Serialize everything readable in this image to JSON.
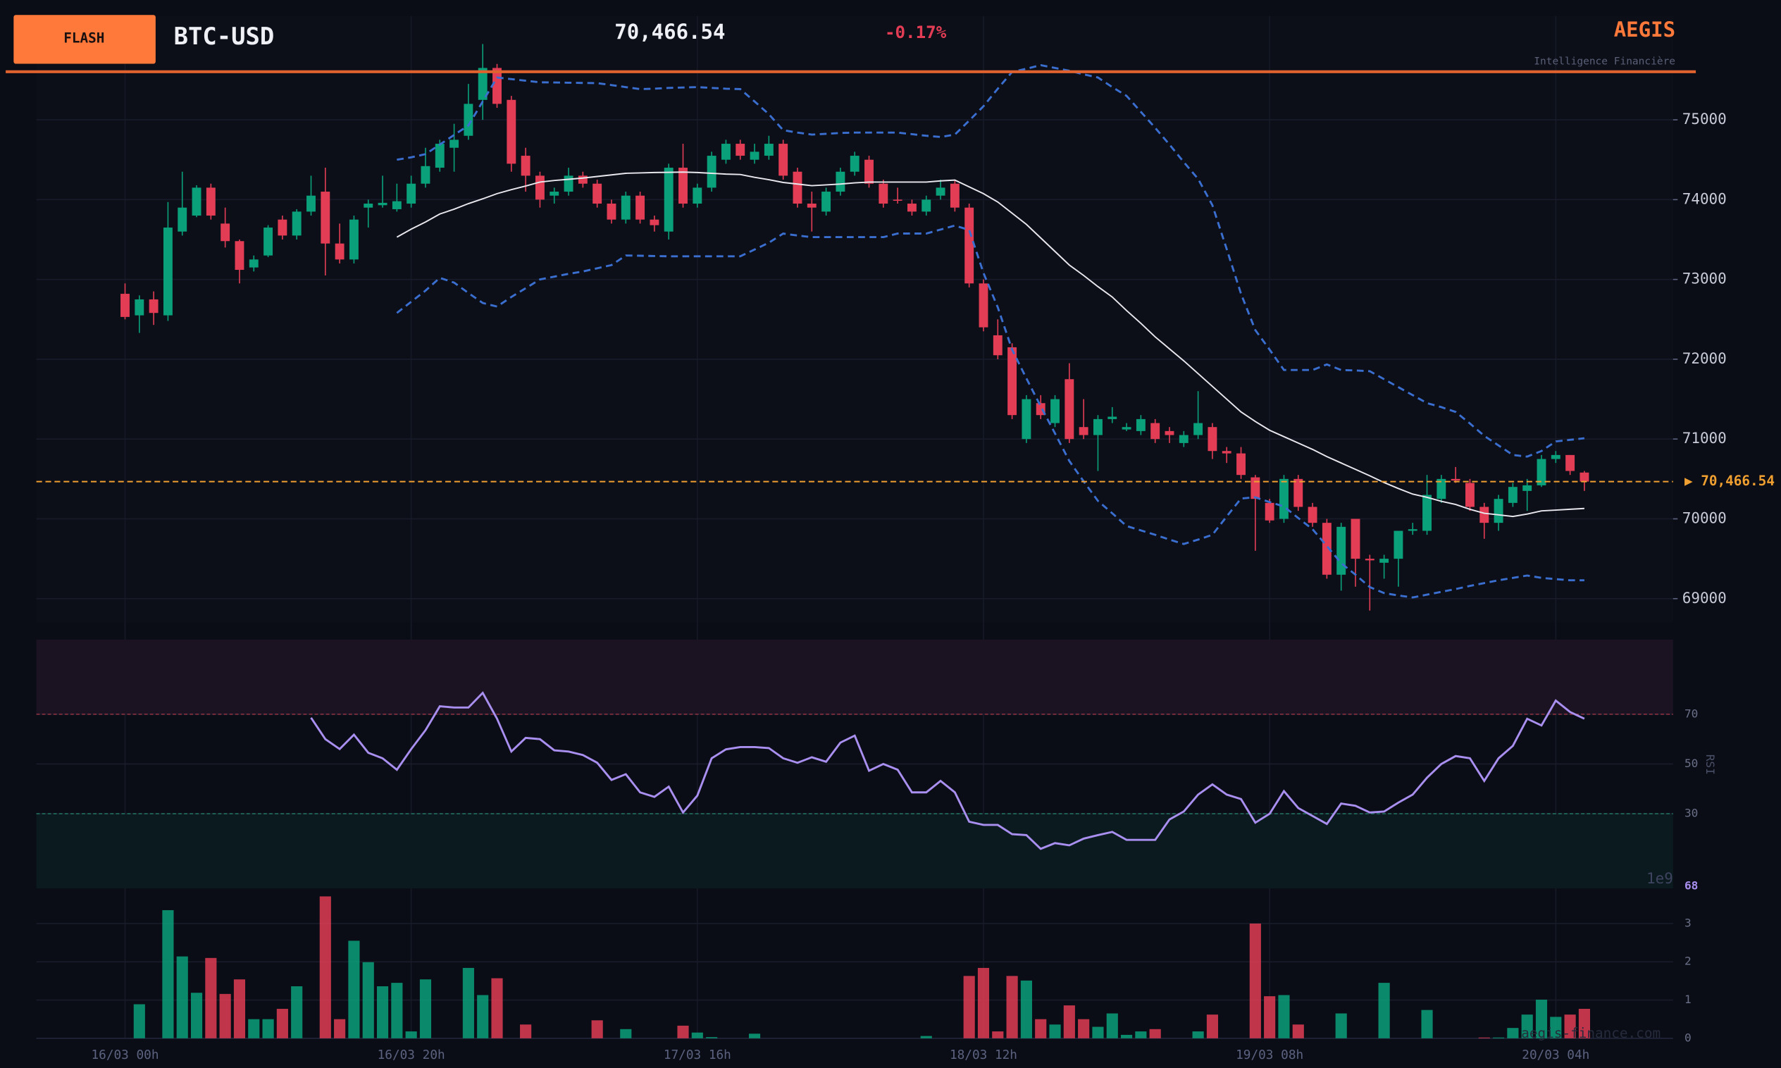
{
  "header": {
    "badge": "FLASH",
    "symbol": "BTC-USD",
    "change": {
      "value": -0.17,
      "label": "-0.17%"
    },
    "brand": "AEGIS",
    "tagline": "Intelligence Financière",
    "watermark": "aegis-finance.com"
  },
  "chart_data": {
    "type": "candlestick",
    "x": [
      0,
      1,
      2,
      3,
      4,
      5,
      6,
      7,
      8,
      9,
      10,
      11,
      12,
      13,
      14,
      15,
      16,
      17,
      18,
      19,
      20,
      21,
      22,
      23,
      24,
      25,
      26,
      27,
      28,
      29,
      30,
      31,
      32,
      33,
      34,
      35,
      36,
      37,
      38,
      39,
      40,
      41,
      42,
      43,
      44,
      45,
      46,
      47,
      48,
      49,
      50,
      51,
      52,
      53,
      54,
      55,
      56,
      57,
      58,
      59,
      60,
      61,
      62,
      63,
      64,
      65,
      66,
      67,
      68,
      69,
      70,
      71,
      72,
      73,
      74,
      75,
      76,
      77,
      78,
      79,
      80,
      81,
      82,
      83,
      84,
      85,
      86,
      87,
      88,
      89,
      90,
      91,
      92,
      93,
      94,
      95,
      96,
      97,
      98,
      99,
      100,
      101,
      102
    ],
    "xlim": [
      -6.2,
      108.2
    ],
    "xticks": [
      {
        "value": 0,
        "label": "16/03 00h"
      },
      {
        "value": 20,
        "label": "16/03 20h"
      },
      {
        "value": 40,
        "label": "17/03 16h"
      },
      {
        "value": 60,
        "label": "18/03 12h"
      },
      {
        "value": 80,
        "label": "19/03 08h"
      },
      {
        "value": 100,
        "label": "20/03 04h"
      }
    ],
    "ylim": [
      68700,
      76300
    ],
    "yticks": [
      69000,
      70000,
      71000,
      72000,
      73000,
      74000,
      75000
    ],
    "grid": true,
    "up_color": "#0aa17a",
    "down_color": "#e23d55",
    "open": [
      72820,
      72550,
      72750,
      72550,
      73600,
      73800,
      74150,
      73700,
      73480,
      73150,
      73300,
      73750,
      73550,
      73850,
      74100,
      73450,
      73250,
      73900,
      73930,
      73880,
      73950,
      74200,
      74400,
      74650,
      74800,
      75250,
      75650,
      75250,
      74550,
      74300,
      74050,
      74100,
      74300,
      74200,
      73950,
      73750,
      74050,
      73750,
      73600,
      74400,
      73950,
      74150,
      74500,
      74700,
      74500,
      74550,
      74700,
      74350,
      73950,
      73850,
      74100,
      74350,
      74500,
      74200,
      74000,
      73950,
      73850,
      74050,
      74200,
      73900,
      72950,
      72300,
      72150,
      71000,
      71450,
      71200,
      71750,
      71150,
      71050,
      71250,
      71120,
      71100,
      71200,
      71100,
      70950,
      71050,
      71150,
      70850,
      70820,
      70520,
      70200,
      70000,
      70500,
      70150,
      69950,
      69300,
      70000,
      69500,
      69450,
      69500,
      69850,
      69850,
      70250,
      70500,
      70450,
      70150,
      69950,
      70200,
      70350,
      70420,
      70750,
      70800,
      70580
    ],
    "high": [
      72950,
      72800,
      72850,
      73970,
      74350,
      74180,
      74200,
      73900,
      73500,
      73300,
      73680,
      73800,
      73880,
      74300,
      74400,
      73700,
      73800,
      74000,
      74300,
      74200,
      74300,
      74650,
      74750,
      74950,
      75450,
      75950,
      75700,
      75300,
      74650,
      74350,
      74150,
      74400,
      74350,
      74250,
      74000,
      74100,
      74100,
      73800,
      74450,
      74700,
      74200,
      74600,
      74750,
      74750,
      74700,
      74800,
      74750,
      74400,
      74100,
      74150,
      74400,
      74600,
      74550,
      74250,
      74150,
      74000,
      74050,
      74250,
      74250,
      73950,
      73000,
      72500,
      72200,
      71550,
      71550,
      71550,
      71950,
      71500,
      71300,
      71400,
      71200,
      71300,
      71250,
      71150,
      71100,
      71600,
      71200,
      70900,
      70900,
      70550,
      70250,
      70550,
      70550,
      70200,
      70000,
      69950,
      70000,
      69550,
      69550,
      69850,
      69950,
      70550,
      70550,
      70650,
      70500,
      70200,
      70300,
      70450,
      70500,
      70800,
      70850,
      70800,
      70600
    ],
    "low": [
      72500,
      72330,
      72430,
      72480,
      73550,
      73780,
      73750,
      73400,
      72950,
      73100,
      73280,
      73500,
      73500,
      73800,
      73050,
      73200,
      73200,
      73650,
      73900,
      73850,
      73900,
      74150,
      74350,
      74350,
      74750,
      75000,
      75150,
      74350,
      74100,
      73900,
      73950,
      74050,
      74150,
      73900,
      73700,
      73700,
      73700,
      73600,
      73500,
      73900,
      73900,
      74100,
      74450,
      74500,
      74450,
      74500,
      74250,
      73900,
      73600,
      73800,
      74050,
      74300,
      74150,
      73900,
      73950,
      73800,
      73800,
      74000,
      73850,
      72900,
      72350,
      72000,
      71250,
      70950,
      71250,
      71150,
      70950,
      71000,
      70600,
      71200,
      71100,
      71050,
      70950,
      70950,
      70900,
      71000,
      70750,
      70700,
      70500,
      69600,
      69950,
      69950,
      70100,
      69900,
      69250,
      69100,
      69150,
      68850,
      69250,
      69150,
      69800,
      69800,
      70200,
      70450,
      70100,
      69750,
      69850,
      70150,
      70100,
      70400,
      70700,
      70550,
      70350
    ],
    "close": [
      72530,
      72750,
      72580,
      73650,
      73900,
      74150,
      73800,
      73480,
      73120,
      73250,
      73650,
      73550,
      73850,
      74050,
      73450,
      73250,
      73750,
      73950,
      73960,
      73980,
      74200,
      74420,
      74700,
      74750,
      75200,
      75650,
      75200,
      74450,
      74300,
      74000,
      74100,
      74300,
      74200,
      73950,
      73750,
      74050,
      73750,
      73680,
      74400,
      73950,
      74150,
      74550,
      74700,
      74550,
      74600,
      74700,
      74300,
      73950,
      73900,
      74100,
      74350,
      74550,
      74200,
      73950,
      73990,
      73850,
      74000,
      74150,
      73900,
      72950,
      72400,
      72050,
      71300,
      71500,
      71300,
      71500,
      71000,
      71050,
      71250,
      71280,
      71150,
      71250,
      71000,
      71050,
      71050,
      71200,
      70850,
      70820,
      70550,
      70250,
      69980,
      70500,
      70150,
      69950,
      69300,
      69900,
      69500,
      69480,
      69500,
      69850,
      69870,
      70300,
      70500,
      70480,
      70150,
      69950,
      70250,
      70400,
      70420,
      70750,
      70800,
      70600,
      70466.54
    ],
    "overlays": [
      {
        "color": "#3a6fd0",
        "dashed": true,
        "values": [
          null,
          null,
          null,
          null,
          null,
          null,
          null,
          null,
          null,
          null,
          null,
          null,
          null,
          null,
          null,
          null,
          null,
          null,
          null,
          74500,
          74530,
          74570,
          74690,
          74810,
          74930,
          75230,
          75530,
          75510,
          75490,
          75470,
          75468,
          75465,
          75462,
          75460,
          75435,
          75410,
          75385,
          75390,
          75400,
          75405,
          75410,
          75400,
          75390,
          75385,
          75230,
          75070,
          74870,
          74840,
          74815,
          74825,
          74835,
          74840,
          74840,
          74840,
          74840,
          74820,
          74800,
          74785,
          74815,
          74990,
          75170,
          75390,
          75600,
          75640,
          75685,
          75650,
          75615,
          75570,
          75530,
          75410,
          75300,
          75100,
          74900,
          74690,
          74470,
          74260,
          73930,
          73380,
          72820,
          72365,
          72120,
          71865,
          71865,
          71865,
          71935,
          71865,
          71860,
          71850,
          71750,
          71650,
          71550,
          71450,
          71400,
          71340,
          71195,
          71040,
          70920,
          70800,
          70780,
          70850,
          70970,
          70990,
          71010
        ]
      },
      {
        "color": "#e8e8ee",
        "dashed": false,
        "values": [
          null,
          null,
          null,
          null,
          null,
          null,
          null,
          null,
          null,
          null,
          null,
          null,
          null,
          null,
          null,
          null,
          null,
          null,
          null,
          73530,
          73630,
          73720,
          73820,
          73880,
          73950,
          74010,
          74075,
          74125,
          74170,
          74220,
          74240,
          74255,
          74270,
          74290,
          74310,
          74330,
          74335,
          74340,
          74342,
          74345,
          74340,
          74330,
          74320,
          74315,
          74280,
          74250,
          74215,
          74195,
          74175,
          74185,
          74195,
          74210,
          74220,
          74220,
          74220,
          74220,
          74220,
          74235,
          74245,
          74160,
          74075,
          73970,
          73830,
          73690,
          73520,
          73350,
          73180,
          73050,
          72910,
          72780,
          72610,
          72450,
          72280,
          72130,
          71980,
          71820,
          71660,
          71500,
          71340,
          71220,
          71110,
          71030,
          70950,
          70870,
          70780,
          70700,
          70620,
          70540,
          70455,
          70380,
          70310,
          70270,
          70220,
          70180,
          70120,
          70070,
          70050,
          70030,
          70060,
          70100,
          70110,
          70120,
          70130
        ]
      },
      {
        "color": "#3a6fd0",
        "dashed": true,
        "values": [
          null,
          null,
          null,
          null,
          null,
          null,
          null,
          null,
          null,
          null,
          null,
          null,
          null,
          null,
          null,
          null,
          null,
          null,
          null,
          72580,
          72720,
          72860,
          73020,
          72960,
          72830,
          72705,
          72660,
          72780,
          72890,
          73000,
          73035,
          73070,
          73100,
          73140,
          73180,
          73300,
          73297,
          73293,
          73290,
          73290,
          73290,
          73290,
          73290,
          73290,
          73375,
          73460,
          73575,
          73550,
          73530,
          73530,
          73530,
          73530,
          73530,
          73530,
          73575,
          73575,
          73575,
          73625,
          73675,
          73620,
          73080,
          72650,
          72120,
          71760,
          71410,
          71070,
          70725,
          70470,
          70225,
          70070,
          69910,
          69855,
          69800,
          69740,
          69685,
          69740,
          69800,
          70030,
          70255,
          70270,
          70210,
          70155,
          70010,
          69870,
          69660,
          69445,
          69300,
          69145,
          69070,
          69040,
          69015,
          69050,
          69085,
          69120,
          69160,
          69195,
          69230,
          69260,
          69290,
          69260,
          69245,
          69230,
          69230
        ]
      }
    ],
    "last_price": {
      "value": 70466.54,
      "label": "70,466.54"
    },
    "price_tag": "▶ 70,466.54",
    "last_price_color": "#f0a030",
    "rsi": {
      "ylim": [
        0,
        100
      ],
      "yticks": [
        30,
        50,
        70
      ],
      "axis_label": "RSI",
      "color": "#a98ff0",
      "overbought": 70,
      "oversold": 30,
      "last_value_label": "68",
      "values": [
        null,
        null,
        null,
        null,
        null,
        null,
        null,
        null,
        null,
        null,
        null,
        null,
        null,
        68.6,
        60,
        56,
        61.8,
        54.5,
        52.3,
        47.7,
        56,
        63.6,
        73.2,
        72.7,
        72.7,
        78.6,
        68.2,
        55,
        60.5,
        60,
        55.5,
        55,
        53.6,
        50.5,
        43.6,
        45.9,
        38.6,
        36.8,
        40.9,
        30.5,
        37.3,
        52.3,
        55.9,
        56.8,
        56.8,
        56.4,
        52.3,
        50.5,
        52.7,
        50.9,
        58.6,
        61.4,
        47.3,
        50,
        47.7,
        38.6,
        38.6,
        43.2,
        38.6,
        26.8,
        25.5,
        25.5,
        21.8,
        21.4,
        15.9,
        18.2,
        17.3,
        20,
        21.4,
        22.7,
        19.5,
        19.5,
        19.5,
        27.7,
        30.9,
        37.7,
        41.8,
        37.7,
        35.9,
        26.4,
        30,
        39.1,
        32.3,
        29.1,
        25.9,
        34.1,
        33.2,
        30.5,
        30.9,
        34.5,
        37.7,
        44.5,
        50,
        53.2,
        52.3,
        43.2,
        52.3,
        57.3,
        68.2,
        65.5,
        75.5,
        70.9,
        68.2
      ]
    },
    "volume": {
      "ylim": [
        0,
        3.92
      ],
      "yticks": [
        0,
        1,
        2,
        3
      ],
      "offset_label": "1e9",
      "values": [
        0,
        0.89,
        0,
        3.35,
        2.14,
        1.19,
        2.1,
        1.16,
        1.54,
        0.5,
        0.5,
        0.77,
        1.36,
        0,
        3.71,
        0.5,
        2.55,
        1.99,
        1.36,
        1.45,
        0.18,
        1.54,
        0,
        0,
        1.84,
        1.13,
        1.57,
        0,
        0.36,
        0,
        0,
        0,
        0,
        0.47,
        0,
        0.24,
        0,
        0,
        0,
        0.33,
        0.15,
        0.03,
        0,
        0,
        0.12,
        0,
        0,
        0,
        0,
        0,
        0,
        0,
        0,
        0,
        0,
        0,
        0.06,
        0,
        0,
        1.63,
        1.84,
        0.18,
        1.63,
        1.51,
        0.5,
        0.36,
        0.86,
        0.5,
        0.3,
        0.65,
        0.09,
        0.18,
        0.24,
        0,
        0,
        0.18,
        0.62,
        0,
        0,
        3.0,
        1.1,
        1.13,
        0.36,
        0,
        0,
        0.65,
        0,
        0,
        1.45,
        0,
        0,
        0.74,
        0,
        0,
        0,
        0.02,
        0.02,
        0.27,
        0.62,
        1.01,
        0.56,
        0.62,
        0.77
      ]
    }
  }
}
